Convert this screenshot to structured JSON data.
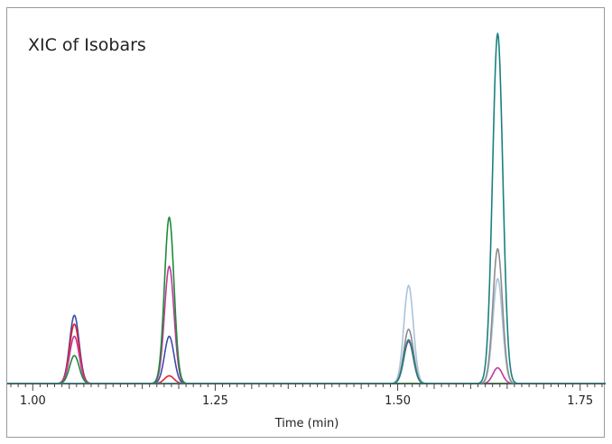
{
  "chart_data": {
    "type": "line",
    "title": "XIC of Isobars",
    "xlabel": "Time (min)",
    "ylabel": "",
    "xlim": [
      0.965,
      1.785
    ],
    "ylim": [
      0,
      100
    ],
    "x_ticks": [
      "1.00",
      "1.25",
      "1.50",
      "1.75"
    ],
    "x_tick_values": [
      1.0,
      1.25,
      1.5,
      1.75
    ],
    "grid": false,
    "legend": "none",
    "series": [
      {
        "color": "#3a4ea8",
        "peaks": [
          [
            1.057,
            19.5,
            0.0065
          ],
          [
            1.187,
            13.5,
            0.0065
          ]
        ]
      },
      {
        "color": "#e02430",
        "peaks": [
          [
            1.057,
            17.0,
            0.0065
          ],
          [
            1.187,
            2.2,
            0.0065
          ]
        ]
      },
      {
        "color": "#c03a9e",
        "peaks": [
          [
            1.057,
            13.5,
            0.0065
          ],
          [
            1.187,
            33.5,
            0.0065
          ],
          [
            1.515,
            12.0,
            0.0065
          ],
          [
            1.637,
            4.5,
            0.0065
          ]
        ]
      },
      {
        "color": "#1f8a3a",
        "peaks": [
          [
            1.057,
            8.0,
            0.0065
          ],
          [
            1.187,
            47.5,
            0.0065
          ]
        ]
      },
      {
        "color": "#a9c4dc",
        "peaks": [
          [
            1.515,
            28.0,
            0.0065
          ],
          [
            1.637,
            30.0,
            0.0065
          ]
        ]
      },
      {
        "color": "#8c8c8c",
        "peaks": [
          [
            1.515,
            15.5,
            0.0065
          ],
          [
            1.637,
            38.5,
            0.0065
          ]
        ]
      },
      {
        "color": "#1a8080",
        "peaks": [
          [
            1.515,
            12.5,
            0.0065
          ],
          [
            1.637,
            100.0,
            0.007
          ]
        ]
      }
    ]
  }
}
